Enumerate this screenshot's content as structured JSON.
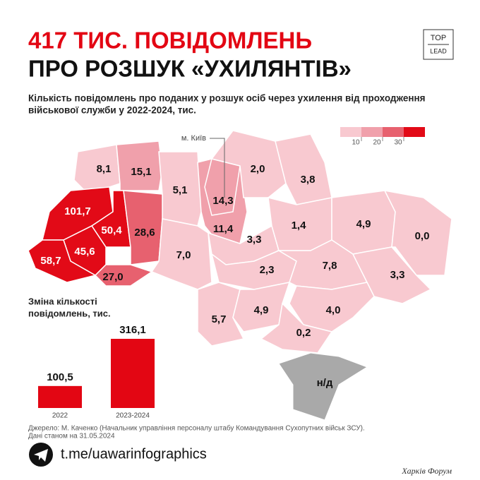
{
  "header": {
    "title_line1": "417 ТИС. ПОВІДОМЛЕНЬ",
    "title_line2": "ПРО РОЗШУК «УХИЛЯНТІВ»",
    "logo": [
      "TOP",
      "LEAD"
    ],
    "subtitle": [
      "Кількість повідомлень про поданих у розшук осіб через ухилення від проходження",
      "військової служби у 2022-2024, тис."
    ]
  },
  "map": {
    "legend": {
      "ticks": [
        10,
        20,
        30
      ],
      "colors": [
        "#f8c9d0",
        "#f0a0ab",
        "#e7616f",
        "#e20a17"
      ]
    },
    "kyiv_callout": "м. Київ",
    "regions": {
      "values": [
        8.1,
        15.1,
        5.1,
        14.3,
        11.4,
        2.0,
        3.8,
        101.7,
        50.4,
        28.6,
        45.6,
        58.7,
        27.0,
        7.0,
        3.3,
        1.4,
        4.9,
        0.0,
        2.3,
        7.8,
        3.3,
        5.7,
        4.9,
        4.0,
        0.2
      ],
      "value_labels": [
        "8,1",
        "15,1",
        "5,1",
        "14,3",
        "11,4",
        "2,0",
        "3,8",
        "101,7",
        "50,4",
        "28,6",
        "45,6",
        "58,7",
        "27,0",
        "7,0",
        "3,3",
        "1,4",
        "4,9",
        "0,0",
        "2,3",
        "7,8",
        "3,3",
        "5,7",
        "4,9",
        "4,0",
        "0,2"
      ]
    },
    "no_data_label": "н/д",
    "no_data_color": "#a9a9a9"
  },
  "chart_data": {
    "type": "bar",
    "title": [
      "Зміна кількості",
      "повідомлень, тис."
    ],
    "categories": [
      "2022",
      "2023-2024"
    ],
    "values": [
      100.5,
      316.1
    ],
    "value_labels": [
      "100,5",
      "316,1"
    ],
    "color": "#e30613"
  },
  "footer": {
    "source": [
      "Джерело: М. Каченко (Начальник управління персоналу штабу Командування Сухопутних військ ЗСУ).",
      "Дані станом на 31.05.2024"
    ],
    "link": "t.me/uawarinfographics",
    "watermark": "Харків Форум"
  }
}
